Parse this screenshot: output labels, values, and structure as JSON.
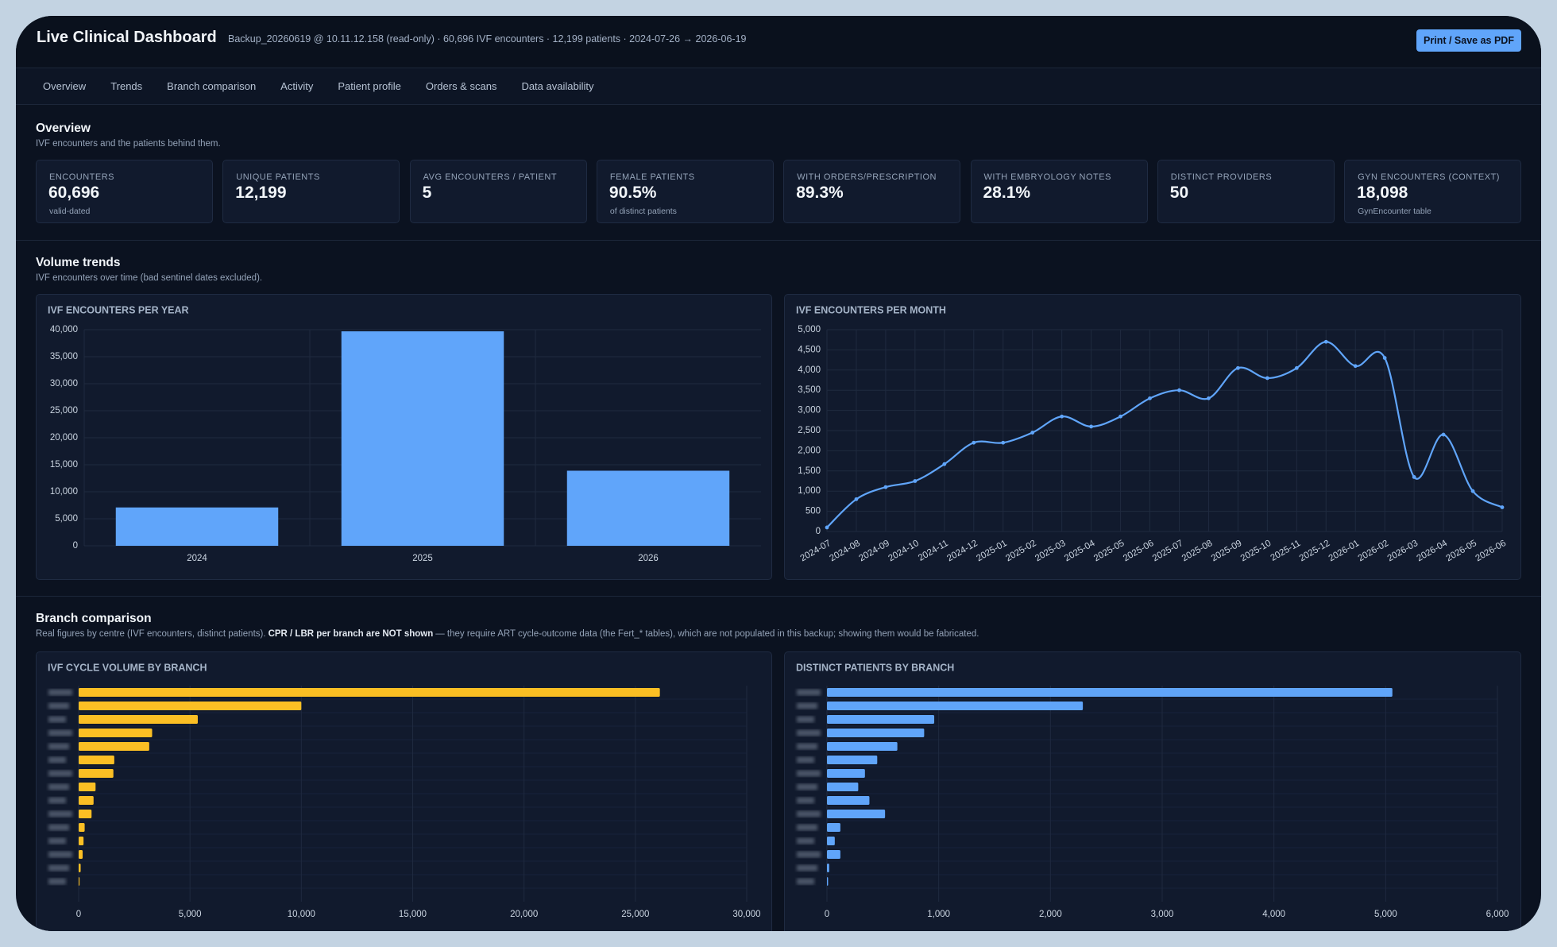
{
  "header": {
    "title": "Live Clinical Dashboard",
    "subtitle": "Backup_20260619 @ 10.11.12.158 (read-only) · 60,696 IVF encounters · 12,199 patients · 2024-07-26 → 2026-06-19",
    "button": "Print / Save as PDF"
  },
  "nav": [
    "Overview",
    "Trends",
    "Branch comparison",
    "Activity",
    "Patient profile",
    "Orders & scans",
    "Data availability"
  ],
  "overview": {
    "title": "Overview",
    "subtitle": "IVF encounters and the patients behind them.",
    "kpis": [
      {
        "label": "ENCOUNTERS",
        "value": "60,696",
        "note": "valid-dated"
      },
      {
        "label": "UNIQUE PATIENTS",
        "value": "12,199"
      },
      {
        "label": "AVG ENCOUNTERS / PATIENT",
        "value": "5"
      },
      {
        "label": "FEMALE PATIENTS",
        "value": "90.5%",
        "note": "of distinct patients"
      },
      {
        "label": "WITH ORDERS/PRESCRIPTION",
        "value": "89.3%"
      },
      {
        "label": "WITH EMBRYOLOGY NOTES",
        "value": "28.1%"
      },
      {
        "label": "DISTINCT PROVIDERS",
        "value": "50"
      },
      {
        "label": "GYN ENCOUNTERS (CONTEXT)",
        "value": "18,098",
        "note": "GynEncounter table"
      }
    ]
  },
  "trends": {
    "title": "Volume trends",
    "subtitle": "IVF encounters over time (bad sentinel dates excluded)."
  },
  "branches": {
    "title": "Branch comparison",
    "subtitle": "Real figures by centre (IVF encounters, distinct patients).",
    "subtitle_bold": "CPR / LBR per branch are NOT shown",
    "subtitle_rest": "— they require ART cycle-outcome data (the Fert_* tables), which are not populated in this backup; showing them would be fabricated."
  },
  "chart_data": [
    {
      "type": "bar",
      "title": "IVF ENCOUNTERS PER YEAR",
      "categories": [
        "2024",
        "2025",
        "2026"
      ],
      "values": [
        7100,
        39700,
        13900
      ],
      "color": "#60a5fa",
      "ylim": [
        0,
        40000
      ],
      "yticks": [
        0,
        {
          "value": 5000,
          "label": "5,000"
        },
        {
          "value": 10000,
          "label": "10,000"
        },
        {
          "value": 15000,
          "label": "15,000"
        },
        {
          "value": 20000,
          "label": "20,000"
        },
        {
          "value": 25000,
          "label": "25,000"
        },
        {
          "value": 30000,
          "label": "30,000"
        },
        {
          "value": 35000,
          "label": "35,000"
        },
        {
          "value": 40000,
          "label": "40,000"
        }
      ],
      "grid": true
    },
    {
      "type": "line",
      "title": "IVF ENCOUNTERS PER MONTH",
      "categories": [
        "2024-07",
        "2024-08",
        "2024-09",
        "2024-10",
        "2024-11",
        "2024-12",
        "2025-01",
        "2025-02",
        "2025-03",
        "2025-04",
        "2025-05",
        "2025-06",
        "2025-07",
        "2025-08",
        "2025-09",
        "2025-10",
        "2025-11",
        "2025-12",
        "2026-01",
        "2026-02",
        "2026-03",
        "2026-04",
        "2026-05",
        "2026-06"
      ],
      "values": [
        100,
        800,
        1100,
        1250,
        1670,
        2200,
        2200,
        2450,
        2850,
        2600,
        2850,
        3300,
        3500,
        3300,
        4050,
        3800,
        4050,
        4700,
        4100,
        4300,
        1350,
        2400,
        1000,
        600
      ],
      "color": "#60a5fa",
      "ylim": [
        0,
        5000
      ],
      "yticks": [
        0,
        500,
        {
          "value": 1000,
          "label": "1,000"
        },
        {
          "value": 1500,
          "label": "1,500"
        },
        {
          "value": 2000,
          "label": "2,000"
        },
        {
          "value": 2500,
          "label": "2,500"
        },
        {
          "value": 3000,
          "label": "3,000"
        },
        {
          "value": 3500,
          "label": "3,500"
        },
        {
          "value": 4000,
          "label": "4,000"
        },
        {
          "value": 4500,
          "label": "4,500"
        },
        {
          "value": 5000,
          "label": "5,000"
        }
      ],
      "grid": true
    },
    {
      "type": "hbar",
      "title": "IVF CYCLE VOLUME BY BRANCH",
      "categories": [
        null,
        null,
        null,
        null,
        null,
        null,
        null,
        null,
        null,
        null,
        null,
        null,
        null,
        null,
        null
      ],
      "values": [
        26100,
        10000,
        5350,
        3300,
        3170,
        1600,
        1560,
        760,
        670,
        580,
        270,
        220,
        180,
        90,
        40
      ],
      "color": "#fbbf24",
      "xlim": [
        0,
        30000
      ],
      "xticks": [
        0,
        {
          "value": 5000,
          "label": "5,000"
        },
        {
          "value": 10000,
          "label": "10,000"
        },
        {
          "value": 15000,
          "label": "15,000"
        },
        {
          "value": 20000,
          "label": "20,000"
        },
        {
          "value": 25000,
          "label": "25,000"
        },
        {
          "value": 30000,
          "label": "30,000"
        }
      ],
      "grid": true
    },
    {
      "type": "hbar",
      "title": "DISTINCT PATIENTS BY BRANCH",
      "categories": [
        null,
        null,
        null,
        null,
        null,
        null,
        null,
        null,
        null,
        null,
        null,
        null,
        null,
        null,
        null
      ],
      "values": [
        5060,
        2290,
        960,
        870,
        630,
        450,
        340,
        280,
        380,
        520,
        120,
        70,
        120,
        20,
        10
      ],
      "color": "#60a5fa",
      "xlim": [
        0,
        6000
      ],
      "xticks": [
        0,
        {
          "value": 1000,
          "label": "1,000"
        },
        {
          "value": 2000,
          "label": "2,000"
        },
        {
          "value": 3000,
          "label": "3,000"
        },
        {
          "value": 4000,
          "label": "4,000"
        },
        {
          "value": 5000,
          "label": "5,000"
        },
        {
          "value": 6000,
          "label": "6,000"
        }
      ],
      "grid": true
    }
  ]
}
